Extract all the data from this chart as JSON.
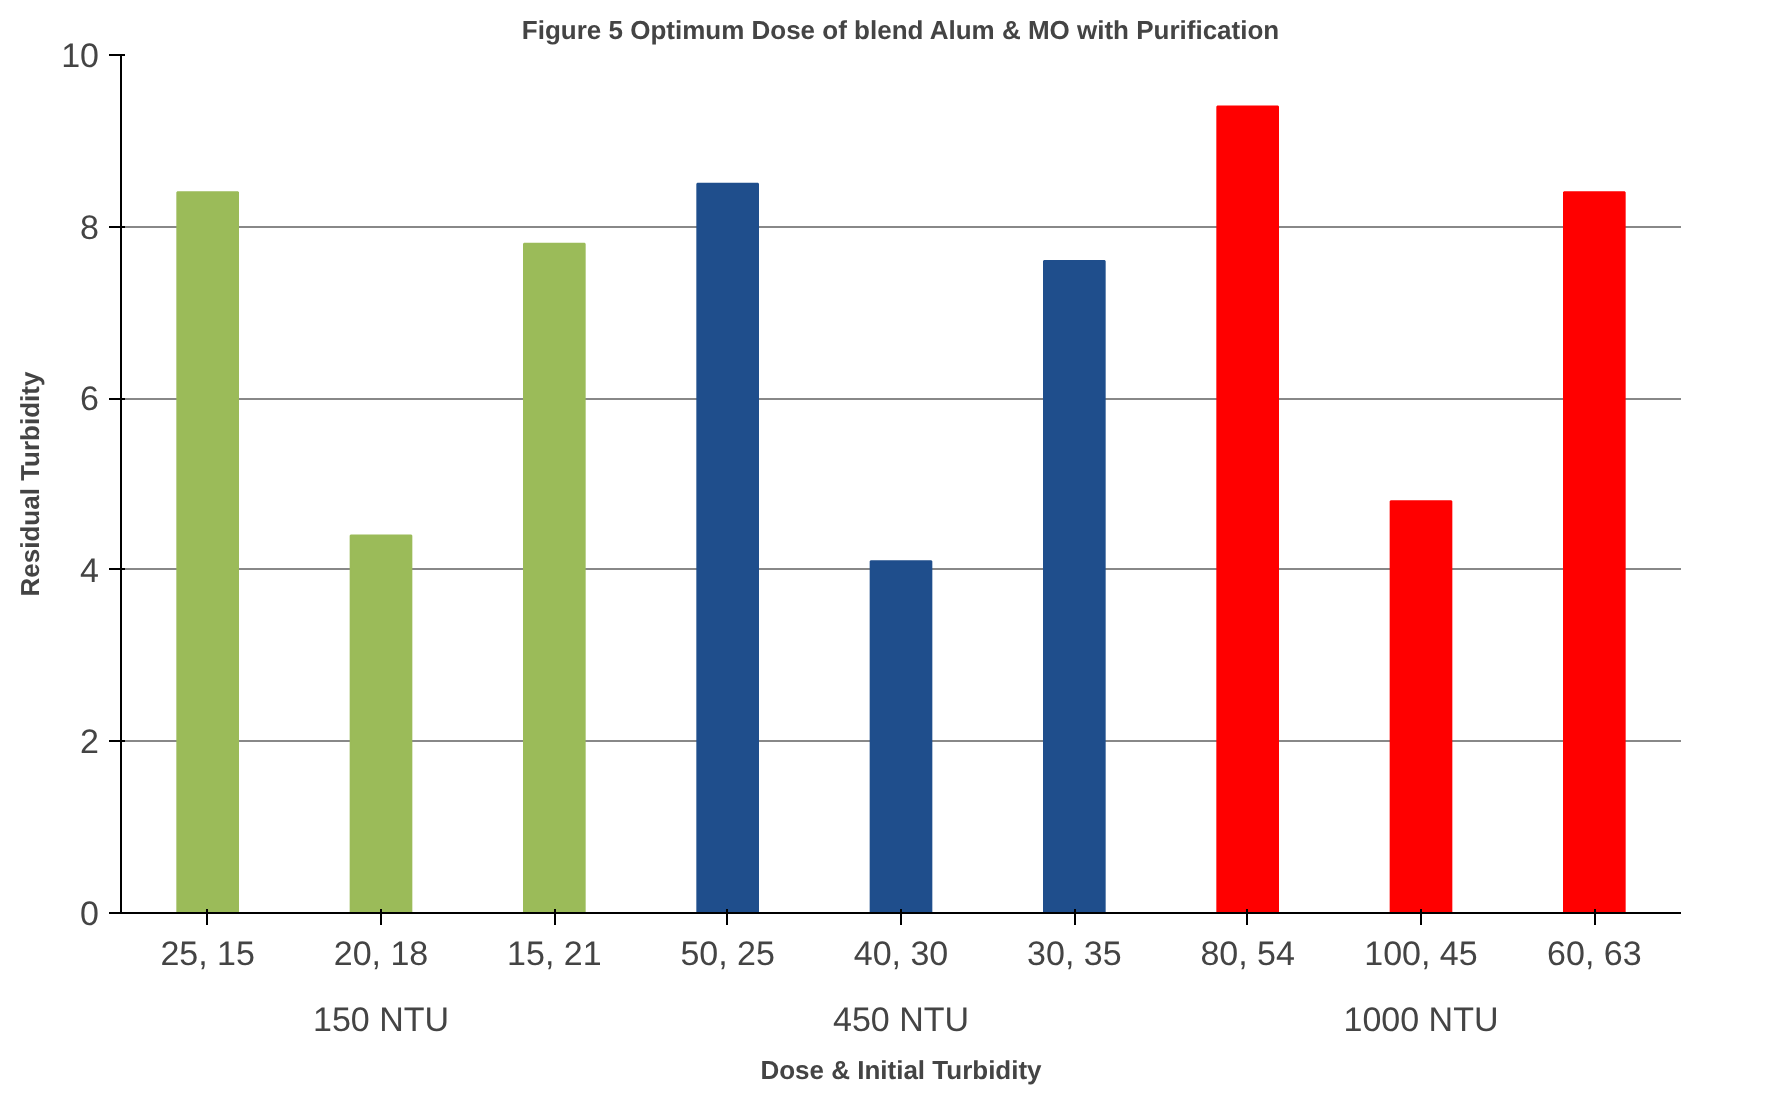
{
  "chart_data": {
    "type": "bar",
    "title": "Figure 5 Optimum Dose of blend Alum & MO with Purification",
    "xlabel": "Dose & Initial Turbidity",
    "ylabel": "Residual Turbidity",
    "categories": [
      "25, 15",
      "20, 18",
      "15, 21",
      "50, 25",
      "40, 30",
      "30, 35",
      "80, 54",
      "100, 45",
      "60, 63"
    ],
    "values": [
      8.4,
      4.4,
      7.8,
      8.5,
      4.1,
      7.6,
      9.4,
      4.8,
      8.4
    ],
    "colors": [
      "#9bbb59",
      "#9bbb59",
      "#9bbb59",
      "#1f4e8c",
      "#1f4e8c",
      "#1f4e8c",
      "#ff0000",
      "#ff0000",
      "#ff0000"
    ],
    "annotations": [
      "150 NTU",
      "450 NTU",
      "1000 NTU"
    ],
    "ylim": [
      0,
      10
    ],
    "yticks": [
      0,
      2,
      4,
      6,
      8,
      10
    ],
    "grid": "y"
  }
}
